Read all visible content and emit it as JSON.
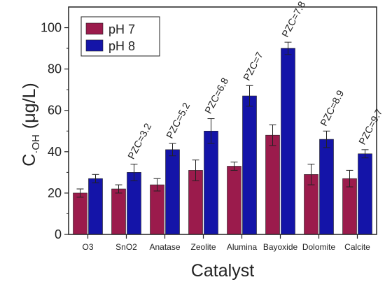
{
  "chart_data": {
    "type": "bar",
    "xlabel": "Catalyst",
    "ylabel_main": "C",
    "ylabel_sub": "·OH",
    "ylabel_unit": "(μg/L)",
    "ylim": [
      0,
      110
    ],
    "yticks": [
      0,
      20,
      40,
      60,
      80,
      100
    ],
    "categories": [
      "O3",
      "SnO2",
      "Anatase",
      "Zeolite",
      "Alumina",
      "Bayoxide",
      "Dolomite",
      "Calcite"
    ],
    "series": [
      {
        "name": "pH 7",
        "color": "#9b1b4c",
        "values": [
          20,
          22,
          24,
          31,
          33,
          48,
          29,
          27
        ],
        "errors": [
          2,
          2,
          3,
          5,
          2,
          5,
          5,
          4
        ]
      },
      {
        "name": "pH 8",
        "color": "#1414a8",
        "values": [
          27,
          30,
          41,
          50,
          67,
          90,
          46,
          39
        ],
        "errors": [
          2,
          4,
          3,
          6,
          5,
          3,
          4,
          2
        ]
      }
    ],
    "annotations": [
      "",
      "PZC=3.2",
      "PZC=5.2",
      "PZC=6.8",
      "PZC=7",
      "PZC=7.8",
      "PZC=8.9",
      "PZC=9.7"
    ],
    "legend_position": "top-left",
    "grid": false
  }
}
